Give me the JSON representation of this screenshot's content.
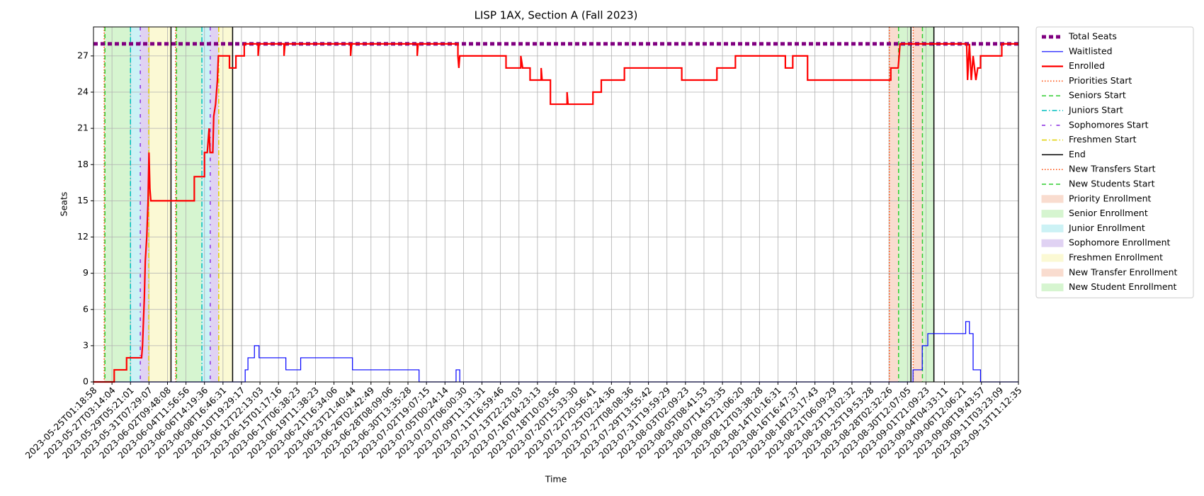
{
  "chart_data": {
    "type": "line",
    "title": "LISP 1AX, Section A (Fall 2023)",
    "x_label": "Time",
    "y_label": "Seats",
    "xlim": [
      0,
      50
    ],
    "ylim": [
      0,
      29.4
    ],
    "grid": true,
    "legend": "outside upper right",
    "xticks": [
      {
        "value": 0,
        "label": "2023-05-25T01:18:58"
      },
      {
        "value": 1,
        "label": "2023-05-27T03:14:04"
      },
      {
        "value": 2,
        "label": "2023-05-29T05:21:01"
      },
      {
        "value": 3,
        "label": "2023-05-31T07:29:07"
      },
      {
        "value": 4,
        "label": "2023-06-02T09:48:08"
      },
      {
        "value": 5,
        "label": "2023-06-04T11:56:56"
      },
      {
        "value": 6,
        "label": "2023-06-06T14:19:36"
      },
      {
        "value": 7,
        "label": "2023-06-08T16:46:31"
      },
      {
        "value": 8,
        "label": "2023-06-10T19:29:17"
      },
      {
        "value": 9,
        "label": "2023-06-12T22:13:03"
      },
      {
        "value": 10,
        "label": "2023-06-15T01:17:16"
      },
      {
        "value": 11,
        "label": "2023-06-17T06:38:23"
      },
      {
        "value": 12,
        "label": "2023-06-19T11:38:23"
      },
      {
        "value": 13,
        "label": "2023-06-21T16:34:06"
      },
      {
        "value": 14,
        "label": "2023-06-23T21:40:44"
      },
      {
        "value": 15,
        "label": "2023-06-26T02:42:49"
      },
      {
        "value": 16,
        "label": "2023-06-28T08:09:06"
      },
      {
        "value": 17,
        "label": "2023-06-30T13:35:28"
      },
      {
        "value": 18,
        "label": "2023-07-02T19:07:15"
      },
      {
        "value": 19,
        "label": "2023-07-05T00:24:14"
      },
      {
        "value": 20,
        "label": "2023-07-07T06:00:30"
      },
      {
        "value": 21,
        "label": "2023-07-09T11:31:31"
      },
      {
        "value": 22,
        "label": "2023-07-11T16:59:46"
      },
      {
        "value": 23,
        "label": "2023-07-13T22:23:03"
      },
      {
        "value": 24,
        "label": "2023-07-16T04:23:13"
      },
      {
        "value": 25,
        "label": "2023-07-18T10:03:56"
      },
      {
        "value": 26,
        "label": "2023-07-20T15:33:30"
      },
      {
        "value": 27,
        "label": "2023-07-22T20:56:41"
      },
      {
        "value": 28,
        "label": "2023-07-25T02:24:36"
      },
      {
        "value": 29,
        "label": "2023-07-27T08:08:36"
      },
      {
        "value": 30,
        "label": "2023-07-29T13:55:42"
      },
      {
        "value": 31,
        "label": "2023-07-31T19:59:29"
      },
      {
        "value": 32,
        "label": "2023-08-03T02:09:23"
      },
      {
        "value": 33,
        "label": "2023-08-05T08:41:53"
      },
      {
        "value": 34,
        "label": "2023-08-07T14:53:35"
      },
      {
        "value": 35,
        "label": "2023-08-09T21:06:20"
      },
      {
        "value": 36,
        "label": "2023-08-12T03:38:28"
      },
      {
        "value": 37,
        "label": "2023-08-14T10:16:31"
      },
      {
        "value": 38,
        "label": "2023-08-16T16:47:37"
      },
      {
        "value": 39,
        "label": "2023-08-18T23:17:43"
      },
      {
        "value": 40,
        "label": "2023-08-21T06:09:29"
      },
      {
        "value": 41,
        "label": "2023-08-23T13:02:32"
      },
      {
        "value": 42,
        "label": "2023-08-25T19:53:28"
      },
      {
        "value": 43,
        "label": "2023-08-28T02:32:26"
      },
      {
        "value": 44,
        "label": "2023-08-30T12:07:05"
      },
      {
        "value": 45,
        "label": "2023-09-01T21:09:23"
      },
      {
        "value": 46,
        "label": "2023-09-04T04:33:11"
      },
      {
        "value": 47,
        "label": "2023-09-06T12:06:21"
      },
      {
        "value": 48,
        "label": "2023-09-08T19:43:57"
      },
      {
        "value": 49,
        "label": "2023-09-11T03:23:09"
      },
      {
        "value": 50,
        "label": "2023-09-13T11:12:35"
      }
    ],
    "yticks": [
      0,
      3,
      6,
      9,
      12,
      15,
      18,
      21,
      24,
      27
    ],
    "series": [
      {
        "name": "Total Seats",
        "color": "#800080",
        "style": "dashed",
        "width": 5,
        "x": [
          0,
          50
        ],
        "values": [
          28,
          28
        ]
      },
      {
        "name": "Waitlisted",
        "color": "#0000ff",
        "style": "solid",
        "width": 1.2,
        "x": [
          0,
          8.2,
          8.2,
          8.35,
          8.35,
          8.7,
          8.7,
          8.95,
          8.95,
          10.4,
          10.4,
          11.2,
          11.2,
          14.0,
          14.0,
          17.6,
          17.6,
          19.6,
          19.6,
          19.8,
          19.8,
          44.3,
          44.3,
          44.8,
          44.8,
          45.1,
          45.1,
          47.15,
          47.15,
          47.35,
          47.35,
          47.55,
          47.55,
          47.95,
          47.95,
          50
        ],
        "values": [
          0,
          0,
          1,
          1,
          2,
          2,
          3,
          3,
          2,
          2,
          1,
          1,
          2,
          2,
          1,
          1,
          0,
          0,
          1,
          1,
          0,
          0,
          1,
          1,
          3,
          3,
          4,
          4,
          5,
          5,
          4,
          4,
          1,
          1,
          0,
          0
        ]
      },
      {
        "name": "Enrolled",
        "color": "#ff0000",
        "style": "solid",
        "width": 2.2,
        "x": [
          0,
          1.12,
          1.12,
          1.79,
          1.79,
          2.6,
          2.65,
          2.7,
          2.75,
          2.8,
          2.88,
          2.95,
          3.0,
          3.05,
          3.1,
          5.45,
          5.45,
          6.0,
          6.0,
          6.15,
          6.25,
          6.3,
          6.45,
          6.5,
          6.6,
          6.7,
          6.75,
          7.35,
          7.35,
          7.7,
          7.7,
          8.15,
          8.15,
          8.9,
          8.9,
          8.95,
          10.3,
          10.3,
          10.35,
          13.9,
          13.9,
          13.95,
          17.5,
          17.5,
          17.55,
          19.7,
          19.7,
          19.75,
          19.8,
          22.3,
          22.3,
          23.1,
          23.1,
          23.2,
          23.6,
          23.6,
          24.2,
          24.2,
          24.25,
          24.7,
          24.7,
          25.6,
          25.6,
          25.65,
          27.0,
          27.0,
          27.45,
          27.45,
          28.7,
          28.7,
          31.8,
          31.8,
          33.7,
          33.7,
          34.7,
          34.7,
          37.4,
          37.4,
          37.8,
          37.8,
          38.6,
          38.6,
          43.1,
          43.1,
          43.5,
          43.6,
          47.2,
          47.25,
          47.35,
          47.45,
          47.55,
          47.7,
          47.8,
          47.95,
          47.95,
          49.1,
          49.1,
          50
        ],
        "values": [
          0,
          0,
          1,
          1,
          2,
          2,
          3,
          5,
          7,
          10,
          12,
          15,
          19,
          16,
          15,
          15,
          17,
          17,
          19,
          19,
          21,
          19,
          19,
          22,
          23,
          25,
          27,
          27,
          26,
          26,
          27,
          27,
          28,
          28,
          27,
          28,
          28,
          27,
          28,
          28,
          27,
          28,
          28,
          27,
          28,
          28,
          27,
          26,
          27,
          27,
          26,
          26,
          27,
          26,
          26,
          25,
          25,
          26,
          25,
          25,
          23,
          23,
          24,
          23,
          23,
          24,
          24,
          25,
          25,
          26,
          26,
          25,
          25,
          26,
          26,
          27,
          27,
          26,
          26,
          27,
          27,
          25,
          25,
          26,
          26,
          28,
          28,
          25,
          28,
          25,
          27,
          25,
          26,
          26,
          27,
          27,
          28,
          28
        ]
      }
    ],
    "markers": [
      {
        "name": "Priorities Start",
        "color": "#ff4500",
        "style": "dotted",
        "x": [
          0.58,
          4.44,
          43.02
        ]
      },
      {
        "name": "Seniors Start",
        "color": "#32cd32",
        "style": "dashed",
        "x": [
          0.62,
          4.49,
          43.52
        ]
      },
      {
        "name": "Juniors Start",
        "color": "#00bfbf",
        "style": "dashdot",
        "x": [
          2.0,
          5.86
        ]
      },
      {
        "name": "Sophomores Start",
        "color": "#8a2be2",
        "style": "loosedashdot",
        "x": [
          2.53,
          6.31
        ]
      },
      {
        "name": "Freshmen Start",
        "color": "#e0d000",
        "style": "dashdot",
        "x": [
          2.99,
          6.77
        ]
      },
      {
        "name": "End",
        "color": "#000000",
        "style": "solid",
        "x": [
          4.19,
          7.52,
          44.19,
          45.43
        ]
      },
      {
        "name": "New Transfers Start",
        "color": "#ff4500",
        "style": "dotted",
        "x": [
          44.31
        ]
      },
      {
        "name": "New Students Start",
        "color": "#32cd32",
        "style": "dashed",
        "x": [
          44.81
        ]
      }
    ],
    "spans": [
      {
        "name": "Priority Enrollment",
        "color": "#f9dccf",
        "ranges": [
          [
            0.58,
            0.62
          ],
          [
            4.44,
            4.49
          ],
          [
            43.02,
            43.52
          ]
        ]
      },
      {
        "name": "Senior Enrollment",
        "color": "#d6f5d0",
        "ranges": [
          [
            0.62,
            2.0
          ],
          [
            4.49,
            5.86
          ],
          [
            43.52,
            44.19
          ]
        ]
      },
      {
        "name": "Junior Enrollment",
        "color": "#ccf2f5",
        "ranges": [
          [
            2.0,
            2.53
          ],
          [
            5.86,
            6.31
          ]
        ]
      },
      {
        "name": "Sophomore Enrollment",
        "color": "#e0d2f3",
        "ranges": [
          [
            2.53,
            2.99
          ],
          [
            6.31,
            6.77
          ]
        ]
      },
      {
        "name": "Freshmen Enrollment",
        "color": "#fbf9d4",
        "ranges": [
          [
            2.99,
            4.19
          ],
          [
            6.77,
            7.52
          ]
        ]
      },
      {
        "name": "New Transfer Enrollment",
        "color": "#f9dccf",
        "ranges": [
          [
            44.31,
            44.81
          ]
        ]
      },
      {
        "name": "New Student Enrollment",
        "color": "#d6f5d0",
        "ranges": [
          [
            44.81,
            45.43
          ]
        ]
      }
    ]
  }
}
